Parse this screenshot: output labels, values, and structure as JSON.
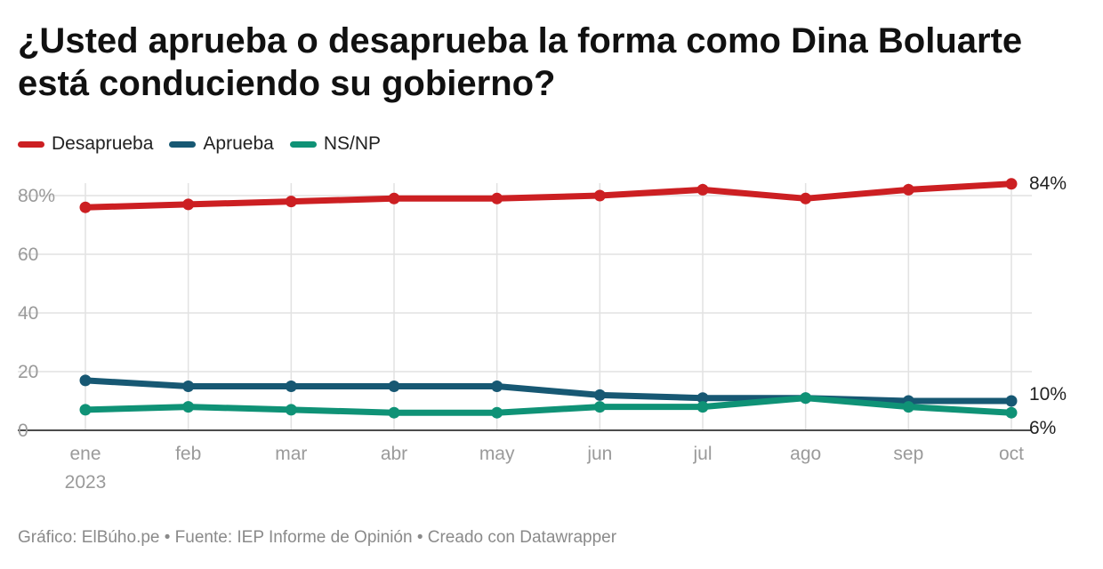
{
  "title": "¿Usted aprueba o desaprueba la forma como Dina Boluarte está conduciendo su gobierno?",
  "footer": "Gráfico: ElBúho.pe • Fuente: IEP Informe de Opinión • Creado con Datawrapper",
  "colors": {
    "desaprueba": "#cc1f22",
    "aprueba": "#175873",
    "nsnp": "#0f9276",
    "grid": "#e2e2e2",
    "axis_text": "#9a9a9a",
    "label_text": "#222222"
  },
  "chart_data": {
    "type": "line",
    "categories": [
      "ene",
      "feb",
      "mar",
      "abr",
      "may",
      "jun",
      "jul",
      "ago",
      "sep",
      "oct"
    ],
    "year_label": "2023",
    "ylim": [
      0,
      84
    ],
    "yticks": [
      "80%",
      "60",
      "40",
      "20",
      "0"
    ],
    "ytick_values": [
      80,
      60,
      40,
      20,
      0
    ],
    "grid": true,
    "legend_position": "top-left",
    "series": [
      {
        "name": "Desaprueba",
        "color_key": "desaprueba",
        "values": [
          76,
          77,
          78,
          79,
          79,
          80,
          82,
          79,
          82,
          84
        ],
        "end_label": "84%"
      },
      {
        "name": "Aprueba",
        "color_key": "aprueba",
        "values": [
          17,
          15,
          15,
          15,
          15,
          12,
          11,
          11,
          10,
          10
        ],
        "end_label": "10%"
      },
      {
        "name": "NS/NP",
        "color_key": "nsnp",
        "values": [
          7,
          8,
          7,
          6,
          6,
          8,
          8,
          11,
          8,
          6
        ],
        "end_label": "6%"
      }
    ]
  }
}
